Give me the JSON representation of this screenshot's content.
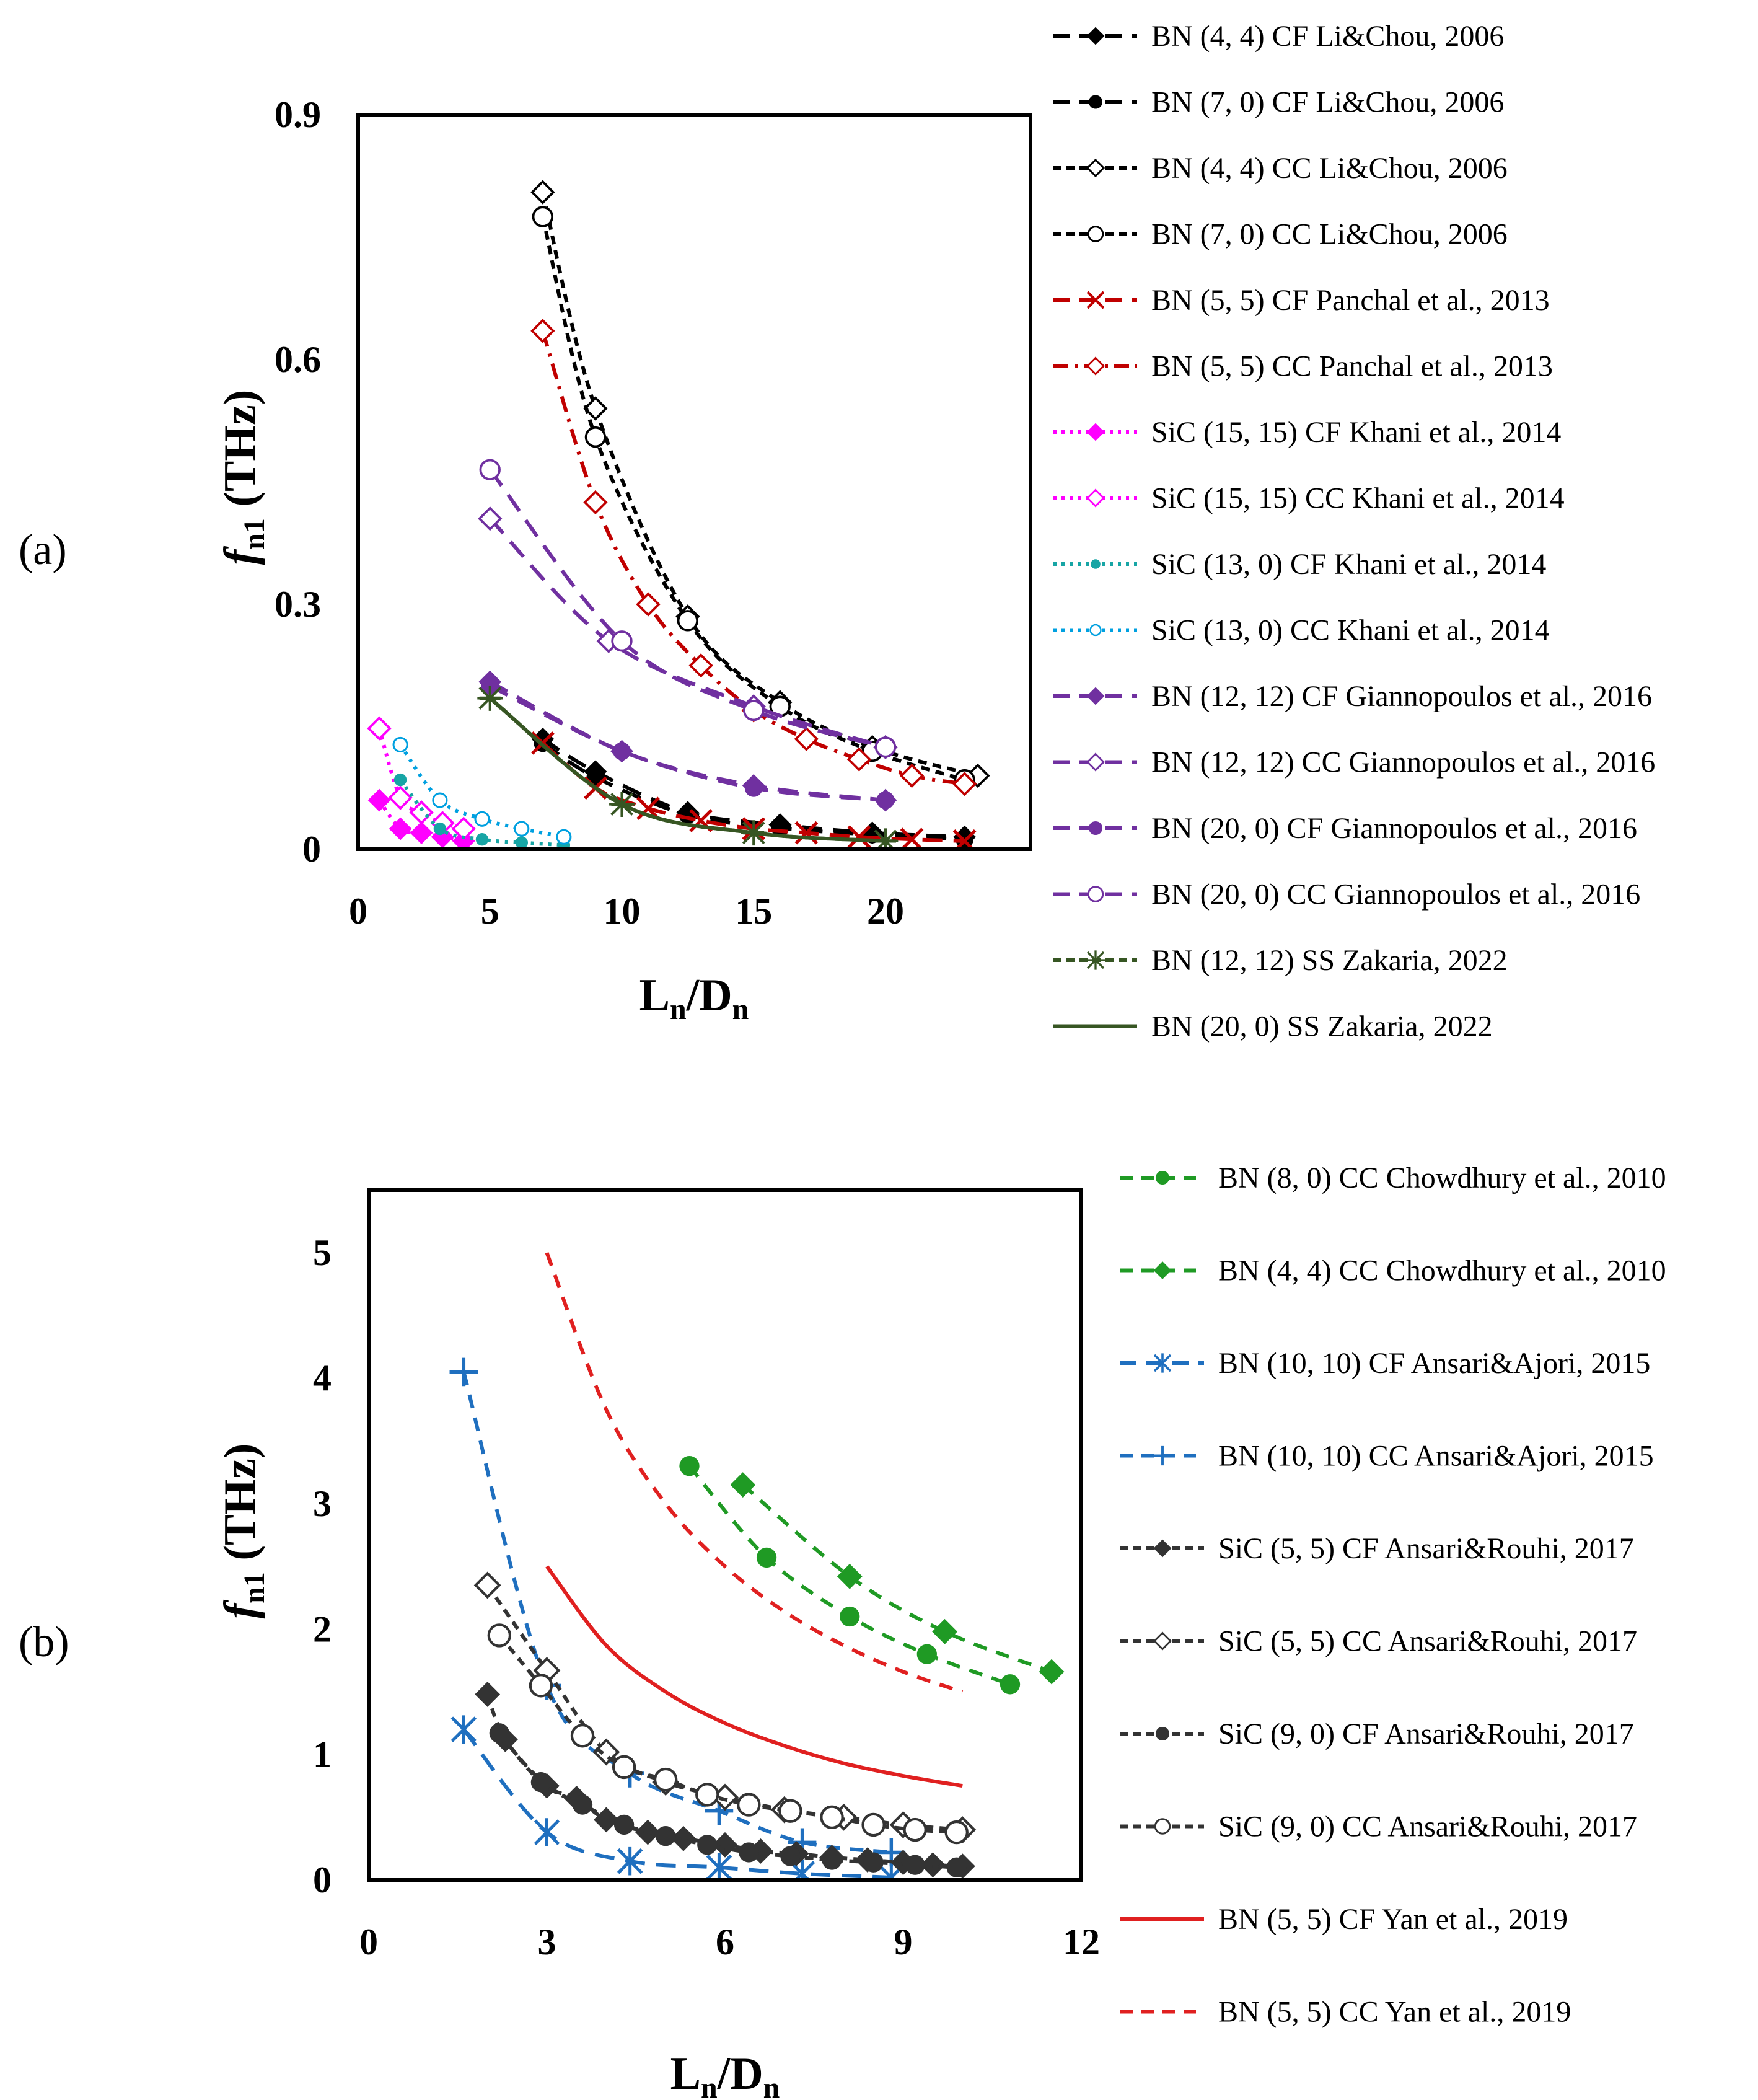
{
  "panels": [
    {
      "label": "(a)",
      "chart_data": {
        "type": "line",
        "xlabel": "Ln/Dn",
        "ylabel": "fn1 (THz)",
        "xlim": [
          0,
          25.5
        ],
        "ylim": [
          0,
          0.9
        ],
        "xticks": [
          "0",
          "5",
          "10",
          "15",
          "20"
        ],
        "xtick_values": [
          0,
          5,
          10,
          15,
          20
        ],
        "yticks": [
          "0",
          "0.3",
          "0.6",
          "0.9"
        ],
        "ytick_values": [
          0,
          0.3,
          0.6,
          0.9
        ],
        "series": [
          {
            "name": "BN (4, 4) CF Li&Chou, 2006",
            "color": "#000000",
            "dash": "long",
            "marker": "diamond-filled",
            "x": [
              7,
              9,
              12.5,
              16,
              19.5,
              23
            ],
            "y": [
              0.135,
              0.095,
              0.045,
              0.03,
              0.02,
              0.015
            ]
          },
          {
            "name": "BN (7, 0) CF Li&Chou, 2006",
            "color": "#000000",
            "dash": "long",
            "marker": "circle-filled",
            "x": [
              7,
              9,
              12.5,
              16,
              19.5,
              23
            ],
            "y": [
              0.13,
              0.088,
              0.042,
              0.026,
              0.018,
              0.012
            ]
          },
          {
            "name": "BN (4, 4) CC Li&Chou, 2006",
            "color": "#000000",
            "dash": "short",
            "marker": "diamond-open",
            "x": [
              7,
              9,
              12.5,
              16,
              19.5,
              23.5
            ],
            "y": [
              0.805,
              0.54,
              0.285,
              0.18,
              0.125,
              0.09
            ]
          },
          {
            "name": "BN (7, 0) CC Li&Chou, 2006",
            "color": "#000000",
            "dash": "short",
            "marker": "circle-open",
            "x": [
              7,
              9,
              12.5,
              16,
              19.5,
              23
            ],
            "y": [
              0.775,
              0.505,
              0.28,
              0.175,
              0.12,
              0.085
            ]
          },
          {
            "name": "BN (5, 5) CF Panchal et al., 2013",
            "color": "#c00000",
            "dash": "long",
            "marker": "cross",
            "x": [
              7,
              9,
              11,
              13,
              15,
              17,
              19,
              21,
              23
            ],
            "y": [
              0.13,
              0.075,
              0.05,
              0.035,
              0.025,
              0.02,
              0.015,
              0.012,
              0.01
            ]
          },
          {
            "name": "BN (5, 5) CC Panchal et al., 2013",
            "color": "#c00000",
            "dash": "dashdot",
            "marker": "diamond-open",
            "x": [
              7,
              9,
              11,
              13,
              15,
              17,
              19,
              21,
              23
            ],
            "y": [
              0.635,
              0.425,
              0.3,
              0.225,
              0.17,
              0.135,
              0.11,
              0.09,
              0.08
            ]
          },
          {
            "name": "SiC (15, 15) CF Khani et al., 2014",
            "color": "#ff00ff",
            "dash": "dot",
            "marker": "diamond-filled",
            "x": [
              0.8,
              1.6,
              2.4,
              3.2,
              4
            ],
            "y": [
              0.06,
              0.025,
              0.02,
              0.015,
              0.01
            ]
          },
          {
            "name": "SiC (15, 15) CC Khani et al., 2014",
            "color": "#ff00ff",
            "dash": "dot",
            "marker": "diamond-open",
            "x": [
              0.8,
              1.6,
              2.4,
              3.2,
              4
            ],
            "y": [
              0.148,
              0.063,
              0.045,
              0.032,
              0.025
            ]
          },
          {
            "name": "SiC (13, 0) CF Khani et al., 2014",
            "color": "#17a5a5",
            "dash": "dot",
            "marker": "circle-filled-small",
            "x": [
              1.6,
              3.1,
              4.7,
              6.2,
              7.8
            ],
            "y": [
              0.085,
              0.025,
              0.012,
              0.008,
              0.005
            ]
          },
          {
            "name": "SiC (13, 0) CC Khani et al., 2014",
            "color": "#00a0e0",
            "dash": "dot",
            "marker": "circle-open-small",
            "x": [
              1.6,
              3.1,
              4.7,
              6.2,
              7.8
            ],
            "y": [
              0.128,
              0.06,
              0.037,
              0.025,
              0.015
            ]
          },
          {
            "name": "BN (12, 12) CF Giannopoulos et al., 2016",
            "color": "#7030a0",
            "dash": "long",
            "marker": "diamond-filled",
            "x": [
              5,
              10,
              15,
              20
            ],
            "y": [
              0.205,
              0.12,
              0.078,
              0.06
            ]
          },
          {
            "name": "BN (12, 12) CC Giannopoulos et al., 2016",
            "color": "#7030a0",
            "dash": "long",
            "marker": "diamond-open",
            "x": [
              5,
              9.5,
              15,
              20
            ],
            "y": [
              0.405,
              0.255,
              0.175,
              0.125
            ]
          },
          {
            "name": "BN (20, 0) CF Giannopoulos et al., 2016",
            "color": "#7030a0",
            "dash": "long",
            "marker": "circle-filled",
            "x": [
              5,
              10,
              15,
              20
            ],
            "y": [
              0.2,
              0.12,
              0.075,
              0.06
            ]
          },
          {
            "name": "BN (20, 0) CC Giannopoulos et al., 2016",
            "color": "#7030a0",
            "dash": "long",
            "marker": "circle-open",
            "x": [
              5,
              10,
              15,
              20
            ],
            "y": [
              0.465,
              0.255,
              0.17,
              0.125
            ]
          },
          {
            "name": "BN (12, 12) SS Zakaria, 2022",
            "color": "#375623",
            "dash": "short",
            "marker": "star",
            "x": [
              5,
              10,
              15,
              20
            ],
            "y": [
              0.185,
              0.055,
              0.02,
              0.01
            ]
          },
          {
            "name": "BN (20, 0) SS Zakaria, 2022",
            "color": "#375623",
            "dash": "solid",
            "marker": "dash",
            "x": [
              5,
              10,
              15,
              20
            ],
            "y": [
              0.185,
              0.055,
              0.02,
              0.01
            ]
          }
        ]
      }
    },
    {
      "label": "(b)",
      "chart_data": {
        "type": "line",
        "xlabel": "Ln/Dn",
        "ylabel": "fn1 (THz)",
        "xlim": [
          0,
          12
        ],
        "ylim": [
          0,
          5.5
        ],
        "xticks": [
          "0",
          "3",
          "6",
          "9",
          "12"
        ],
        "xtick_values": [
          0,
          3,
          6,
          9,
          12
        ],
        "yticks": [
          "0",
          "1",
          "2",
          "3",
          "4",
          "5"
        ],
        "ytick_values": [
          0,
          1,
          2,
          3,
          4,
          5
        ],
        "series": [
          {
            "name": "BN (8, 0) CC Chowdhury et al., 2010",
            "color": "#1f9a24",
            "dash": "medium",
            "marker": "circle-filled",
            "x": [
              5.4,
              6.7,
              8.1,
              9.4,
              10.8
            ],
            "y": [
              3.3,
              2.57,
              2.1,
              1.8,
              1.56
            ]
          },
          {
            "name": "BN (4, 4) CC Chowdhury et al., 2010",
            "color": "#1f9a24",
            "dash": "medium",
            "marker": "diamond-filled",
            "x": [
              6.3,
              8.1,
              9.7,
              11.5
            ],
            "y": [
              3.15,
              2.42,
              1.98,
              1.66
            ]
          },
          {
            "name": "BN (10, 10) CF Ansari&Ajori, 2015",
            "color": "#1f6fbf",
            "dash": "long",
            "marker": "asterisk",
            "x": [
              1.6,
              3,
              4.4,
              5.9,
              7.3,
              8.8
            ],
            "y": [
              1.2,
              0.38,
              0.15,
              0.1,
              0.05,
              0.02
            ]
          },
          {
            "name": "BN (10, 10) CC Ansari&Ajori, 2015",
            "color": "#1f6fbf",
            "dash": "medium",
            "marker": "plus",
            "x": [
              1.6,
              3,
              4.4,
              5.9,
              7.3,
              8.8
            ],
            "y": [
              4.05,
              1.55,
              0.85,
              0.55,
              0.3,
              0.22
            ]
          },
          {
            "name": "SiC (5, 5) CF Ansari&Rouhi, 2017",
            "color": "#333333",
            "dash": "short",
            "marker": "diamond-filled",
            "x": [
              2,
              2.3,
              3,
              3.5,
              4,
              4.7,
              5.3,
              6,
              6.6,
              7.2,
              7.8,
              8.4,
              9,
              9.5,
              10
            ],
            "y": [
              1.48,
              1.12,
              0.75,
              0.65,
              0.48,
              0.38,
              0.33,
              0.28,
              0.23,
              0.21,
              0.18,
              0.16,
              0.14,
              0.12,
              0.11
            ]
          },
          {
            "name": "SiC (5, 5) CC Ansari&Rouhi, 2017",
            "color": "#333333",
            "dash": "short",
            "marker": "diamond-open",
            "x": [
              2,
              3,
              4,
              5,
              6,
              7,
              8,
              9,
              10
            ],
            "y": [
              2.35,
              1.67,
              1.02,
              0.78,
              0.66,
              0.56,
              0.5,
              0.44,
              0.4
            ]
          },
          {
            "name": "SiC (9, 0) CF Ansari&Rouhi, 2017",
            "color": "#333333",
            "dash": "short",
            "marker": "circle-filled",
            "x": [
              2.2,
              2.9,
              3.6,
              4.3,
              5,
              5.7,
              6.4,
              7.1,
              7.8,
              8.5,
              9.2,
              9.9
            ],
            "y": [
              1.17,
              0.78,
              0.6,
              0.44,
              0.35,
              0.28,
              0.22,
              0.19,
              0.16,
              0.14,
              0.12,
              0.1
            ]
          },
          {
            "name": "SiC (9, 0) CC Ansari&Rouhi, 2017",
            "color": "#333333",
            "dash": "short",
            "marker": "circle-open",
            "x": [
              2.2,
              2.9,
              3.6,
              4.3,
              5,
              5.7,
              6.4,
              7.1,
              7.8,
              8.5,
              9.2,
              9.9
            ],
            "y": [
              1.95,
              1.55,
              1.15,
              0.9,
              0.8,
              0.68,
              0.6,
              0.55,
              0.5,
              0.44,
              0.4,
              0.38
            ]
          },
          {
            "name": "BN (5, 5) CF Yan et al., 2019",
            "color": "#e02020",
            "dash": "solid",
            "marker": "none",
            "x": [
              3,
              4,
              5,
              6,
              7,
              8,
              9,
              10
            ],
            "y": [
              2.5,
              1.87,
              1.5,
              1.25,
              1.07,
              0.93,
              0.83,
              0.75
            ]
          },
          {
            "name": "BN (5, 5) CC Yan et al., 2019",
            "color": "#e02020",
            "dash": "medium",
            "marker": "none",
            "x": [
              3,
              4,
              5,
              6,
              7,
              8,
              9,
              10
            ],
            "y": [
              5.0,
              3.75,
              3.0,
              2.5,
              2.14,
              1.87,
              1.66,
              1.5
            ]
          }
        ]
      }
    }
  ]
}
